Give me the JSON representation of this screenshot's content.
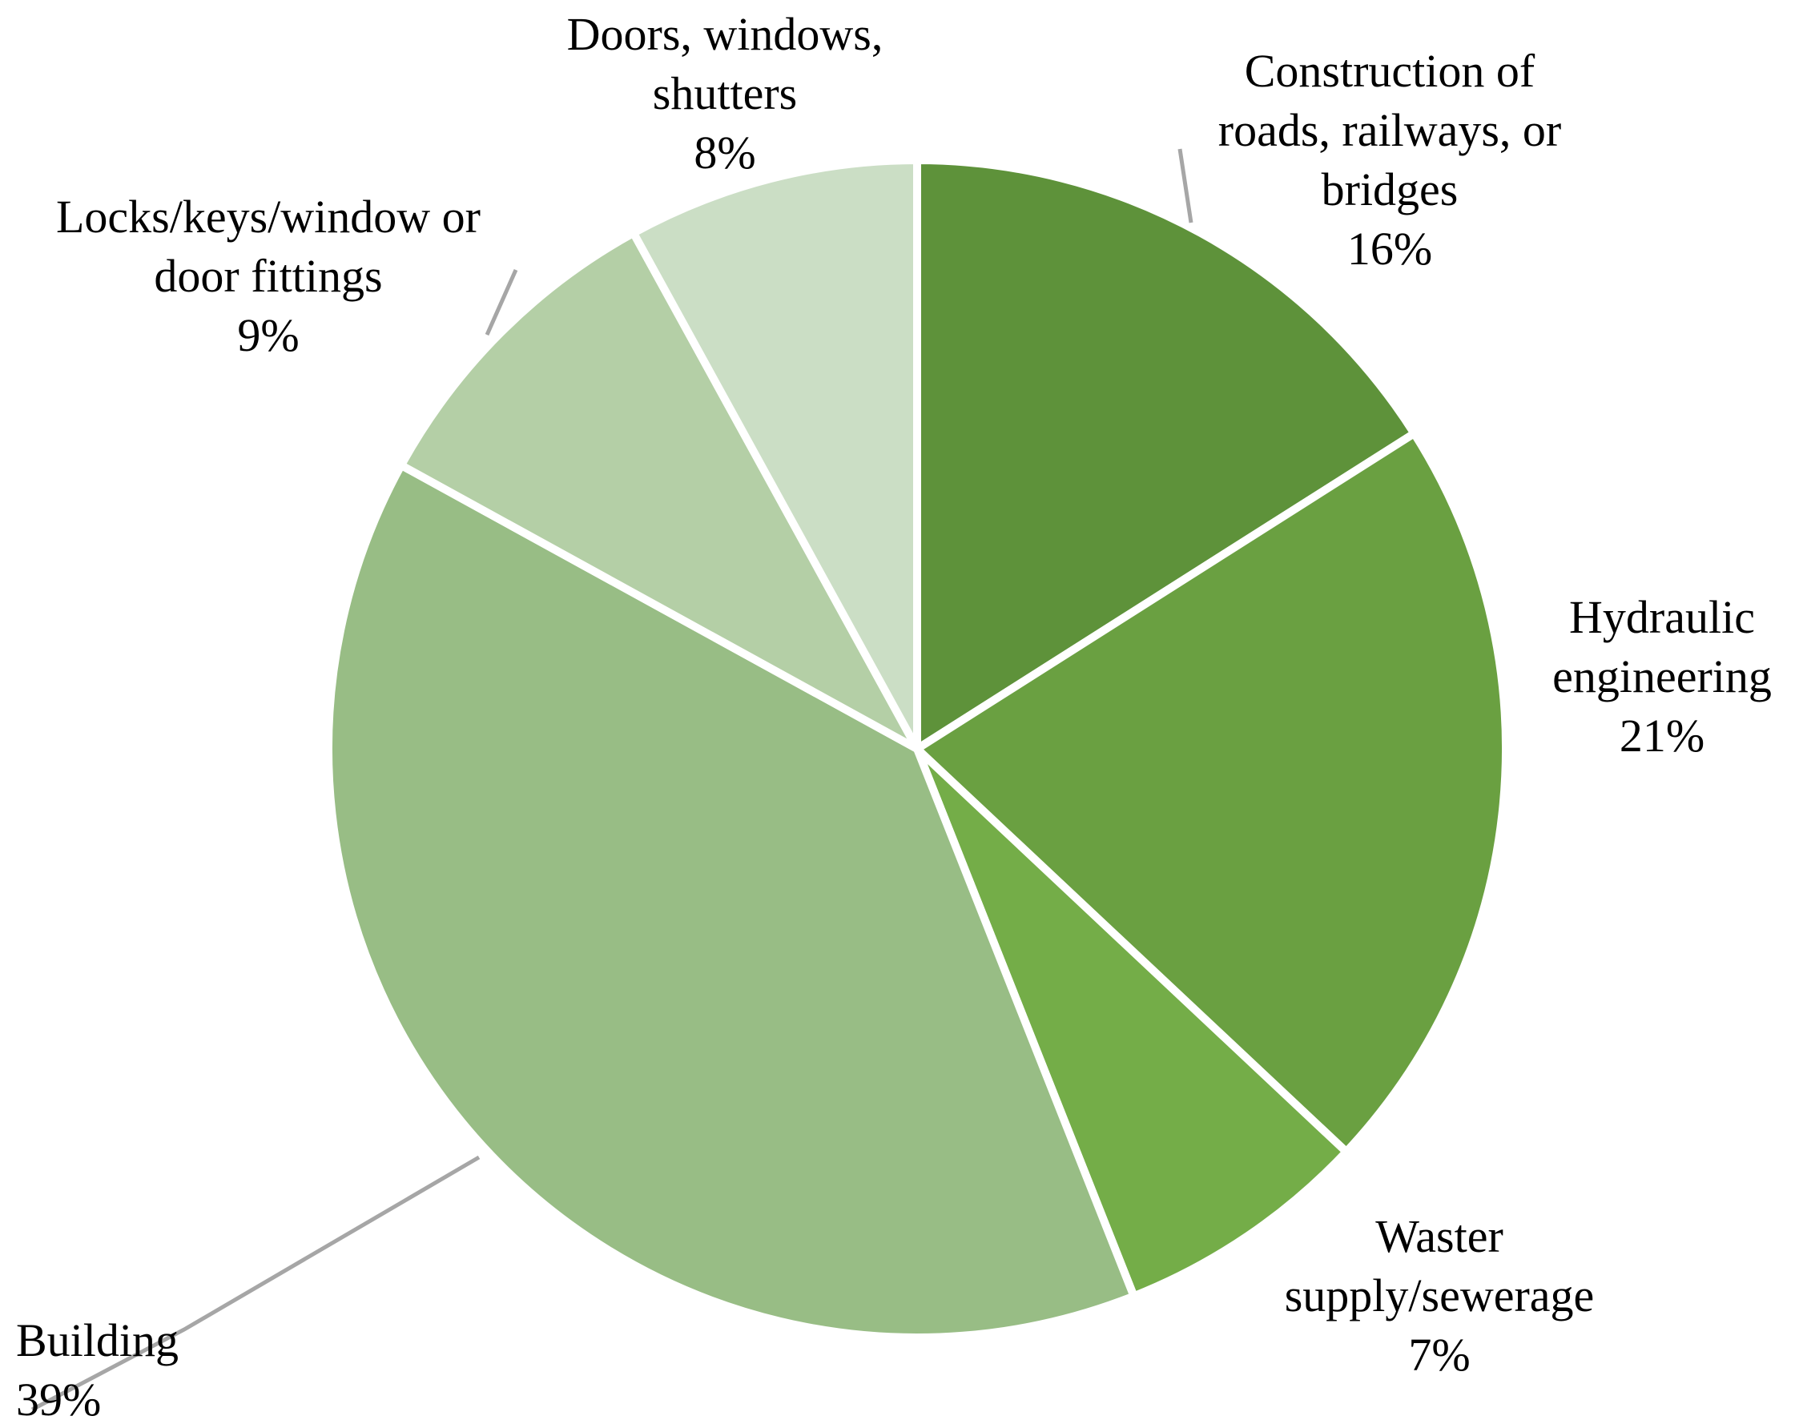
{
  "chart_data": {
    "type": "pie",
    "title": "",
    "start_angle_deg": 0,
    "direction": "clockwise",
    "slices": [
      {
        "label": [
          "Construction of",
          "roads, railways, or",
          "bridges"
        ],
        "value": 16,
        "value_label": "16%",
        "color": "#5e923a"
      },
      {
        "label": [
          "Hydraulic",
          "engineering"
        ],
        "value": 21,
        "value_label": "21%",
        "color": "#6aa041"
      },
      {
        "label": [
          "Waster",
          "supply/sewerage"
        ],
        "value": 7,
        "value_label": "7%",
        "color": "#74ad48"
      },
      {
        "label": [
          "Building"
        ],
        "value": 39,
        "value_label": "39%",
        "color": "#98bd85"
      },
      {
        "label": [
          "Locks/keys/window or",
          "door fittings"
        ],
        "value": 9,
        "value_label": "9%",
        "color": "#b4cfa6"
      },
      {
        "label": [
          "Doors, windows,",
          "shutters"
        ],
        "value": 8,
        "value_label": "8%",
        "color": "#cbdec5"
      }
    ],
    "separator_color": "#ffffff",
    "leader_line_color": "#a6a6a6",
    "legend": "none"
  }
}
